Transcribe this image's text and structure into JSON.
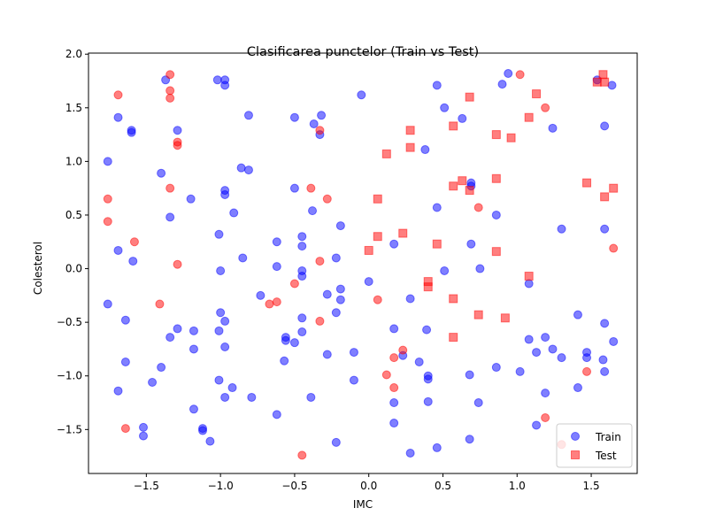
{
  "chart_data": {
    "type": "scatter",
    "title": "Clasificarea punctelor (Train vs Test)",
    "xlabel": "IMC",
    "ylabel": "Colesterol",
    "xlim": [
      -1.89,
      1.81
    ],
    "ylim": [
      -1.91,
      2.01
    ],
    "xticks": [
      "−1.5",
      "−1.0",
      "−0.5",
      "0.0",
      "0.5",
      "1.0",
      "1.5"
    ],
    "xtick_values": [
      -1.5,
      -1.0,
      -0.5,
      0.0,
      0.5,
      1.0,
      1.5
    ],
    "yticks": [
      "−1.5",
      "−1.0",
      "−0.5",
      "0.0",
      "0.5",
      "1.0",
      "1.5",
      "2.0"
    ],
    "ytick_values": [
      -1.5,
      -1.0,
      -0.5,
      0.0,
      0.5,
      1.0,
      1.5,
      2.0
    ],
    "grid": false,
    "legend_position": "lower-right",
    "legend": [
      "Train",
      "Test"
    ],
    "colors": {
      "blue": "#0000ff",
      "red": "#ff0000",
      "alpha": 0.5
    },
    "series": [
      {
        "name": "Train",
        "marker": "circle",
        "points": [
          [
            -1.37,
            1.76
          ],
          [
            -1.02,
            1.76
          ],
          [
            -0.97,
            1.76
          ],
          [
            -0.97,
            1.71
          ],
          [
            -0.81,
            1.43
          ],
          [
            -0.5,
            1.41
          ],
          [
            -0.32,
            1.43
          ],
          [
            -0.37,
            1.35
          ],
          [
            -0.33,
            1.25
          ],
          [
            0.46,
            1.71
          ],
          [
            0.94,
            1.82
          ],
          [
            0.9,
            1.72
          ],
          [
            1.54,
            1.76
          ],
          [
            -1.69,
            1.41
          ],
          [
            -1.6,
            1.29
          ],
          [
            -1.6,
            1.27
          ],
          [
            -1.29,
            1.29
          ],
          [
            0.51,
            1.5
          ],
          [
            0.63,
            1.4
          ],
          [
            1.24,
            1.31
          ],
          [
            1.59,
            1.33
          ],
          [
            1.64,
            1.71
          ],
          [
            -0.05,
            1.62
          ],
          [
            -1.76,
            1.0
          ],
          [
            -1.4,
            0.89
          ],
          [
            -1.2,
            0.65
          ],
          [
            -0.86,
            0.94
          ],
          [
            -0.81,
            0.92
          ],
          [
            -0.97,
            0.73
          ],
          [
            -0.97,
            0.69
          ],
          [
            -0.91,
            0.52
          ],
          [
            -0.5,
            0.75
          ],
          [
            -0.38,
            0.54
          ],
          [
            -0.19,
            0.4
          ],
          [
            0.38,
            1.11
          ],
          [
            0.46,
            0.57
          ],
          [
            0.69,
            0.8
          ],
          [
            0.69,
            0.77
          ],
          [
            0.86,
            0.5
          ],
          [
            -1.34,
            0.48
          ],
          [
            -1.01,
            0.32
          ],
          [
            -0.62,
            0.25
          ],
          [
            -0.45,
            0.3
          ],
          [
            -0.45,
            0.21
          ],
          [
            -0.22,
            0.1
          ],
          [
            -0.85,
            0.1
          ],
          [
            -0.62,
            0.02
          ],
          [
            -0.45,
            -0.02
          ],
          [
            -0.45,
            -0.07
          ],
          [
            -1.0,
            -0.02
          ],
          [
            -1.69,
            0.17
          ],
          [
            -1.59,
            0.07
          ],
          [
            0.17,
            0.23
          ],
          [
            0.51,
            -0.02
          ],
          [
            0.69,
            0.23
          ],
          [
            0.75,
            0.0
          ],
          [
            1.3,
            0.37
          ],
          [
            1.59,
            0.37
          ],
          [
            1.08,
            -0.14
          ],
          [
            -1.76,
            -0.33
          ],
          [
            -1.64,
            -0.48
          ],
          [
            -1.29,
            -0.56
          ],
          [
            -1.18,
            -0.58
          ],
          [
            -1.34,
            -0.64
          ],
          [
            -1.0,
            -0.41
          ],
          [
            -0.97,
            -0.49
          ],
          [
            -1.01,
            -0.58
          ],
          [
            -0.73,
            -0.25
          ],
          [
            -0.56,
            -0.64
          ],
          [
            -0.56,
            -0.67
          ],
          [
            -0.5,
            -0.69
          ],
          [
            -0.45,
            -0.46
          ],
          [
            -0.45,
            -0.59
          ],
          [
            -0.28,
            -0.24
          ],
          [
            -0.19,
            -0.19
          ],
          [
            -0.19,
            -0.29
          ],
          [
            -0.22,
            -0.41
          ],
          [
            0.0,
            -0.12
          ],
          [
            0.28,
            -0.28
          ],
          [
            0.17,
            -0.56
          ],
          [
            0.39,
            -0.57
          ],
          [
            1.41,
            -0.43
          ],
          [
            1.59,
            -0.51
          ],
          [
            -1.64,
            -0.87
          ],
          [
            -1.4,
            -0.92
          ],
          [
            -1.18,
            -0.75
          ],
          [
            -0.97,
            -0.73
          ],
          [
            -0.57,
            -0.86
          ],
          [
            -0.28,
            -0.8
          ],
          [
            -0.1,
            -0.78
          ],
          [
            0.23,
            -0.81
          ],
          [
            0.34,
            -0.87
          ],
          [
            0.4,
            -1.0
          ],
          [
            0.4,
            -1.03
          ],
          [
            1.08,
            -0.66
          ],
          [
            1.13,
            -0.78
          ],
          [
            1.19,
            -0.64
          ],
          [
            1.24,
            -0.75
          ],
          [
            1.3,
            -0.83
          ],
          [
            1.47,
            -0.78
          ],
          [
            1.47,
            -0.83
          ],
          [
            1.58,
            -0.85
          ],
          [
            1.65,
            -0.68
          ],
          [
            -1.69,
            -1.14
          ],
          [
            -1.46,
            -1.06
          ],
          [
            -1.01,
            -1.04
          ],
          [
            -0.92,
            -1.11
          ],
          [
            -0.97,
            -1.2
          ],
          [
            -0.79,
            -1.2
          ],
          [
            -0.39,
            -1.2
          ],
          [
            -0.1,
            -1.04
          ],
          [
            0.68,
            -0.99
          ],
          [
            0.86,
            -0.92
          ],
          [
            1.02,
            -0.96
          ],
          [
            1.19,
            -1.16
          ],
          [
            1.41,
            -1.11
          ],
          [
            1.59,
            -0.96
          ],
          [
            0.4,
            -1.24
          ],
          [
            -1.18,
            -1.31
          ],
          [
            -0.62,
            -1.36
          ],
          [
            -1.52,
            -1.48
          ],
          [
            -1.52,
            -1.56
          ],
          [
            -1.12,
            -1.49
          ],
          [
            -1.12,
            -1.51
          ],
          [
            -1.07,
            -1.61
          ],
          [
            -0.22,
            -1.62
          ],
          [
            0.17,
            -1.25
          ],
          [
            0.17,
            -1.44
          ],
          [
            0.28,
            -1.72
          ],
          [
            0.46,
            -1.67
          ],
          [
            0.68,
            -1.59
          ],
          [
            0.74,
            -1.25
          ],
          [
            1.13,
            -1.46
          ]
        ]
      },
      {
        "name": "Test",
        "marker": "circle",
        "points": [
          [
            -1.69,
            1.62
          ],
          [
            -1.34,
            1.81
          ],
          [
            -1.34,
            1.66
          ],
          [
            -1.34,
            1.59
          ],
          [
            -1.29,
            1.18
          ],
          [
            -1.29,
            1.15
          ],
          [
            -1.34,
            0.75
          ],
          [
            -1.76,
            0.65
          ],
          [
            -1.76,
            0.44
          ],
          [
            -1.58,
            0.25
          ],
          [
            -1.29,
            0.04
          ],
          [
            -1.41,
            -0.33
          ],
          [
            -0.39,
            0.75
          ],
          [
            -0.28,
            0.65
          ],
          [
            -0.33,
            1.29
          ],
          [
            -0.33,
            0.07
          ],
          [
            -0.5,
            -0.14
          ],
          [
            -0.67,
            -0.33
          ],
          [
            -0.62,
            -0.31
          ],
          [
            -0.33,
            -0.49
          ],
          [
            0.06,
            -0.29
          ],
          [
            0.17,
            -0.83
          ],
          [
            0.23,
            -0.76
          ],
          [
            0.12,
            -0.99
          ],
          [
            0.17,
            -1.11
          ],
          [
            0.74,
            0.57
          ],
          [
            1.02,
            1.81
          ],
          [
            1.19,
            1.5
          ],
          [
            1.47,
            -0.96
          ],
          [
            1.19,
            -1.39
          ],
          [
            1.3,
            -1.64
          ],
          [
            1.65,
            0.19
          ],
          [
            -0.45,
            -1.74
          ],
          [
            -1.64,
            -1.49
          ]
        ]
      },
      {
        "name": "Test",
        "marker": "square",
        "points": [
          [
            0.28,
            1.29
          ],
          [
            0.28,
            1.13
          ],
          [
            0.12,
            1.07
          ],
          [
            0.57,
            1.33
          ],
          [
            0.68,
            1.6
          ],
          [
            0.86,
            1.25
          ],
          [
            0.96,
            1.22
          ],
          [
            1.08,
            1.41
          ],
          [
            1.13,
            1.63
          ],
          [
            1.58,
            1.81
          ],
          [
            1.54,
            1.74
          ],
          [
            1.59,
            1.74
          ],
          [
            0.06,
            0.65
          ],
          [
            0.06,
            0.3
          ],
          [
            0.23,
            0.33
          ],
          [
            0.46,
            0.23
          ],
          [
            0.57,
            0.77
          ],
          [
            0.63,
            0.82
          ],
          [
            0.68,
            0.73
          ],
          [
            0.86,
            0.84
          ],
          [
            1.47,
            0.8
          ],
          [
            1.59,
            0.67
          ],
          [
            1.65,
            0.75
          ],
          [
            0.86,
            0.16
          ],
          [
            -0.0,
            0.17
          ],
          [
            0.4,
            -0.12
          ],
          [
            0.4,
            -0.17
          ],
          [
            0.57,
            -0.28
          ],
          [
            1.08,
            -0.07
          ],
          [
            0.74,
            -0.43
          ],
          [
            0.92,
            -0.46
          ],
          [
            0.57,
            -0.64
          ]
        ]
      }
    ]
  }
}
